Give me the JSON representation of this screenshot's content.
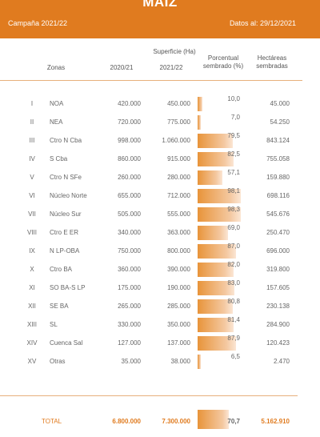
{
  "header": {
    "title": "MAIZ",
    "campaign": "Campaña 2021/22",
    "date": "Datos al: 29/12/2021"
  },
  "columns": {
    "zonas": "Zonas",
    "superficie": "Superficie (Ha)",
    "year1": "2020/21",
    "year2": "2021/22",
    "porcentual": "Porcentual",
    "sembrado": "sembrado (%)",
    "hectareas": "Hectáreas",
    "sembradas": "sembradas"
  },
  "rows": [
    {
      "roman": "I",
      "zone": "NOA",
      "s2020": "420.000",
      "s2021": "450.000",
      "pct": "10,0",
      "pct_value": 10.0,
      "hect": "45.000"
    },
    {
      "roman": "II",
      "zone": "NEA",
      "s2020": "720.000",
      "s2021": "775.000",
      "pct": "7,0",
      "pct_value": 7.0,
      "hect": "54.250"
    },
    {
      "roman": "III",
      "zone": "Ctro N Cba",
      "s2020": "998.000",
      "s2021": "1.060.000",
      "pct": "79,5",
      "pct_value": 79.5,
      "hect": "843.124"
    },
    {
      "roman": "IV",
      "zone": "S Cba",
      "s2020": "860.000",
      "s2021": "915.000",
      "pct": "82,5",
      "pct_value": 82.5,
      "hect": "755.058"
    },
    {
      "roman": "V",
      "zone": "Ctro N SFe",
      "s2020": "260.000",
      "s2021": "280.000",
      "pct": "57,1",
      "pct_value": 57.1,
      "hect": "159.880"
    },
    {
      "roman": "VI",
      "zone": "Núcleo Norte",
      "s2020": "655.000",
      "s2021": "712.000",
      "pct": "98,1",
      "pct_value": 98.1,
      "hect": "698.116"
    },
    {
      "roman": "VII",
      "zone": "Núcleo Sur",
      "s2020": "505.000",
      "s2021": "555.000",
      "pct": "98,3",
      "pct_value": 98.3,
      "hect": "545.676"
    },
    {
      "roman": "VIII",
      "zone": "Ctro E ER",
      "s2020": "340.000",
      "s2021": "363.000",
      "pct": "69,0",
      "pct_value": 69.0,
      "hect": "250.470"
    },
    {
      "roman": "IX",
      "zone": "N LP-OBA",
      "s2020": "750.000",
      "s2021": "800.000",
      "pct": "87,0",
      "pct_value": 87.0,
      "hect": "696.000"
    },
    {
      "roman": "X",
      "zone": "Ctro BA",
      "s2020": "360.000",
      "s2021": "390.000",
      "pct": "82,0",
      "pct_value": 82.0,
      "hect": "319.800"
    },
    {
      "roman": "XI",
      "zone": "SO BA-S LP",
      "s2020": "175.000",
      "s2021": "190.000",
      "pct": "83,0",
      "pct_value": 83.0,
      "hect": "157.605"
    },
    {
      "roman": "XII",
      "zone": "SE BA",
      "s2020": "265.000",
      "s2021": "285.000",
      "pct": "80,8",
      "pct_value": 80.8,
      "hect": "230.138"
    },
    {
      "roman": "XIII",
      "zone": "SL",
      "s2020": "330.000",
      "s2021": "350.000",
      "pct": "81,4",
      "pct_value": 81.4,
      "hect": "284.900"
    },
    {
      "roman": "XIV",
      "zone": "Cuenca Sal",
      "s2020": "127.000",
      "s2021": "137.000",
      "pct": "87,9",
      "pct_value": 87.9,
      "hect": "120.423"
    },
    {
      "roman": "XV",
      "zone": "Otras",
      "s2020": "35.000",
      "s2021": "38.000",
      "pct": "6,5",
      "pct_value": 6.5,
      "hect": "2.470"
    }
  ],
  "total": {
    "label": "TOTAL",
    "s2020": "6.800.000",
    "s2021": "7.300.000",
    "pct": "70,7",
    "pct_value": 70.7,
    "hect": "5.162.910"
  },
  "colors": {
    "accent": "#e07b1f",
    "bar": "#e8943a"
  }
}
